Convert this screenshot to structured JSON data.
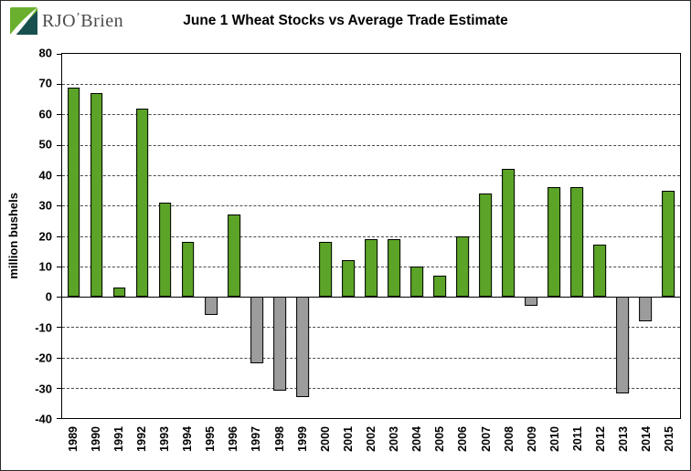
{
  "logo": {
    "rjo": "RJO",
    "apostrophe": "’",
    "brien": "Brien"
  },
  "chart_data": {
    "type": "bar",
    "title": "June 1 Wheat Stocks vs Average Trade Estimate",
    "ylabel": "million bushels",
    "xlabel": "",
    "ylim": [
      -40,
      80
    ],
    "yticks": [
      80,
      70,
      60,
      50,
      40,
      30,
      20,
      10,
      0,
      -10,
      -20,
      -30,
      -40
    ],
    "grid": true,
    "legend_position": "none",
    "categories": [
      "1989",
      "1990",
      "1991",
      "1992",
      "1993",
      "1994",
      "1995",
      "1996",
      "1997",
      "1998",
      "1999",
      "2000",
      "2001",
      "2002",
      "2003",
      "2004",
      "2005",
      "2006",
      "2007",
      "2008",
      "2009",
      "2010",
      "2011",
      "2012",
      "2013",
      "2014",
      "2015"
    ],
    "values": [
      69,
      67,
      3,
      62,
      31,
      18,
      -6,
      27,
      -22,
      -31,
      -33,
      18,
      12,
      19,
      19,
      10,
      7,
      20,
      34,
      42,
      -3,
      36,
      36,
      17,
      -32,
      -8,
      35
    ],
    "positive_color": "#5ca427",
    "negative_color": "#9c9c9c",
    "bar_border_color": "#000000"
  }
}
